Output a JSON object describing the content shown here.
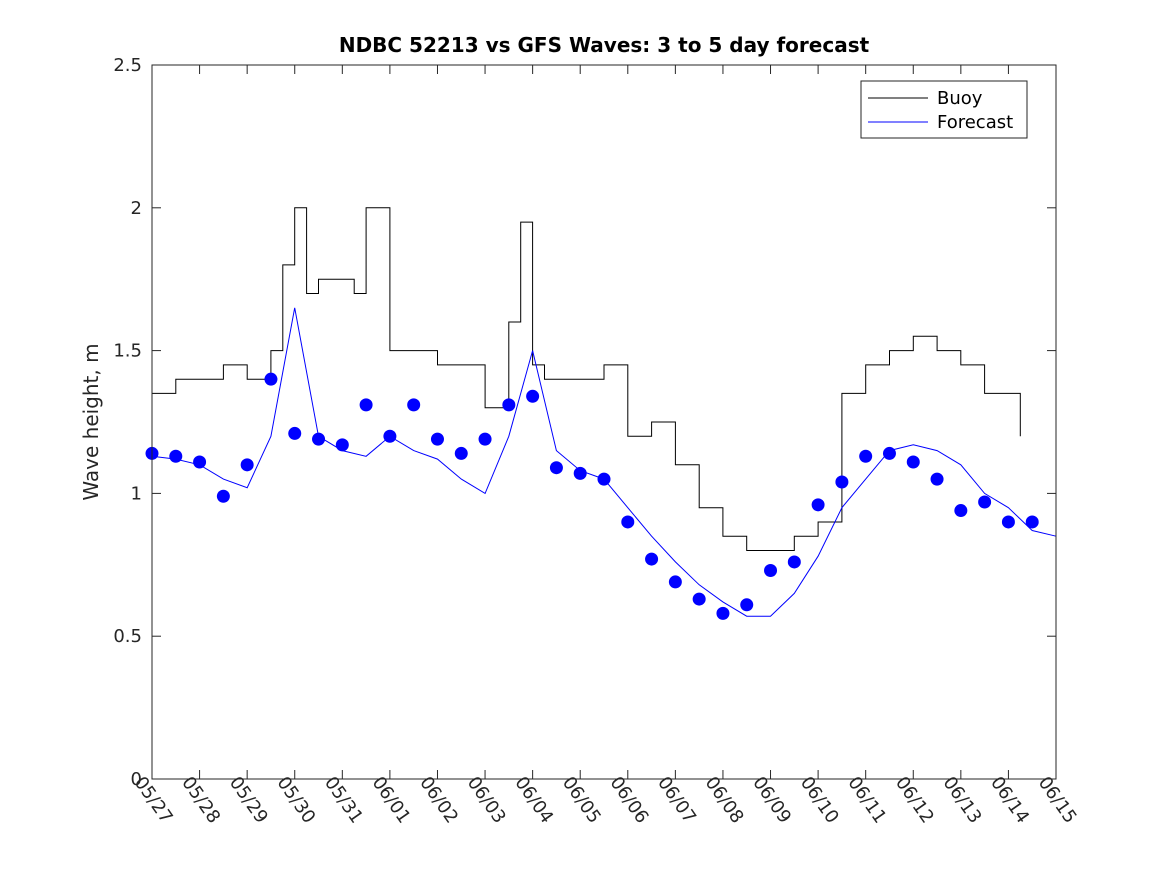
{
  "chart_data": {
    "type": "line",
    "title": "NDBC 52213 vs GFS Waves: 3 to 5 day forecast",
    "xlabel": "",
    "ylabel": "Wave height, m",
    "xlim": [
      "05/27",
      "06/15"
    ],
    "ylim": [
      0,
      2.5
    ],
    "yticks": [
      0,
      0.5,
      1,
      1.5,
      2,
      2.5
    ],
    "ytick_labels": [
      "0",
      "0.5",
      "1",
      "1.5",
      "2",
      "2.5"
    ],
    "xtick_labels": [
      "05/27",
      "05/28",
      "05/29",
      "05/30",
      "05/31",
      "06/01",
      "06/02",
      "06/03",
      "06/04",
      "06/05",
      "06/06",
      "06/07",
      "06/08",
      "06/09",
      "06/10",
      "06/11",
      "06/12",
      "06/13",
      "06/14",
      "06/15"
    ],
    "grid": false,
    "legend_position": "top-right",
    "legend": [
      "Buoy",
      "Forecast"
    ],
    "colors": {
      "buoy": "#000000",
      "forecast": "#0000ff",
      "axes": "#262626"
    },
    "series": [
      {
        "name": "Buoy",
        "x": [
          "05/27",
          "05/27 12:00",
          "05/28",
          "05/28 12:00",
          "05/29",
          "05/29 12:00",
          "05/29 18:00",
          "05/30",
          "05/30 06:00",
          "05/30 12:00",
          "05/31",
          "05/31 06:00",
          "05/31 12:00",
          "06/01",
          "06/01 12:00",
          "06/02",
          "06/02 12:00",
          "06/03",
          "06/03 12:00",
          "06/03 18:00",
          "06/04",
          "06/04 06:00",
          "06/04 12:00",
          "06/05",
          "06/05 12:00",
          "06/06",
          "06/06 12:00",
          "06/07",
          "06/07 12:00",
          "06/08",
          "06/08 12:00",
          "06/09",
          "06/09 12:00",
          "06/10",
          "06/10 12:00",
          "06/11",
          "06/11 12:00",
          "06/12",
          "06/12 12:00",
          "06/13",
          "06/13 12:00",
          "06/14",
          "06/14 06:00"
        ],
        "y": [
          1.35,
          1.4,
          1.4,
          1.45,
          1.4,
          1.5,
          1.8,
          2.0,
          1.7,
          1.75,
          1.75,
          1.7,
          2.0,
          1.5,
          1.5,
          1.45,
          1.45,
          1.3,
          1.6,
          1.95,
          1.45,
          1.4,
          1.4,
          1.4,
          1.45,
          1.2,
          1.25,
          1.1,
          0.95,
          0.85,
          0.8,
          0.8,
          0.85,
          0.9,
          1.35,
          1.45,
          1.5,
          1.55,
          1.5,
          1.45,
          1.35,
          1.35,
          1.2
        ]
      },
      {
        "name": "Forecast",
        "x": [
          "05/27",
          "05/27 12:00",
          "05/28",
          "05/28 12:00",
          "05/29",
          "05/29 12:00",
          "05/30",
          "05/30 12:00",
          "05/31",
          "05/31 12:00",
          "06/01",
          "06/01 12:00",
          "06/02",
          "06/02 12:00",
          "06/03",
          "06/03 12:00",
          "06/04",
          "06/04 12:00",
          "06/05",
          "06/05 12:00",
          "06/06",
          "06/06 12:00",
          "06/07",
          "06/07 12:00",
          "06/08",
          "06/08 12:00",
          "06/09",
          "06/09 12:00",
          "06/10",
          "06/10 12:00",
          "06/11",
          "06/11 12:00",
          "06/12",
          "06/12 12:00",
          "06/13",
          "06/13 12:00",
          "06/14",
          "06/14 12:00",
          "06/15"
        ],
        "y": [
          1.13,
          1.12,
          1.1,
          1.05,
          1.02,
          1.2,
          1.65,
          1.2,
          1.15,
          1.13,
          1.2,
          1.15,
          1.12,
          1.05,
          1.0,
          1.2,
          1.5,
          1.15,
          1.08,
          1.05,
          0.95,
          0.85,
          0.76,
          0.68,
          0.62,
          0.57,
          0.57,
          0.65,
          0.78,
          0.95,
          1.05,
          1.15,
          1.17,
          1.15,
          1.1,
          1.0,
          0.95,
          0.87,
          0.85
        ]
      }
    ],
    "forecast_points": {
      "x": [
        "05/27",
        "05/27 12:00",
        "05/28",
        "05/28 12:00",
        "05/29",
        "05/29 12:00",
        "05/30",
        "05/30 12:00",
        "05/31",
        "05/31 12:00",
        "06/01",
        "06/01 12:00",
        "06/02",
        "06/02 12:00",
        "06/03",
        "06/03 12:00",
        "06/04",
        "06/04 12:00",
        "06/05",
        "06/05 12:00",
        "06/06",
        "06/06 12:00",
        "06/07",
        "06/07 12:00",
        "06/08",
        "06/08 12:00",
        "06/09",
        "06/09 12:00",
        "06/10",
        "06/10 12:00",
        "06/11",
        "06/11 12:00",
        "06/12",
        "06/12 12:00",
        "06/13",
        "06/13 12:00",
        "06/14",
        "06/14 12:00"
      ],
      "y": [
        1.14,
        1.13,
        1.11,
        0.99,
        1.1,
        1.4,
        1.21,
        1.19,
        1.17,
        1.31,
        1.2,
        1.31,
        1.19,
        1.14,
        1.19,
        1.31,
        1.34,
        1.09,
        1.07,
        1.05,
        0.9,
        0.77,
        0.69,
        0.63,
        0.58,
        0.61,
        0.73,
        0.76,
        0.96,
        1.04,
        1.13,
        1.14,
        1.11,
        1.05,
        0.94,
        0.97,
        0.9,
        0.9
      ]
    }
  }
}
